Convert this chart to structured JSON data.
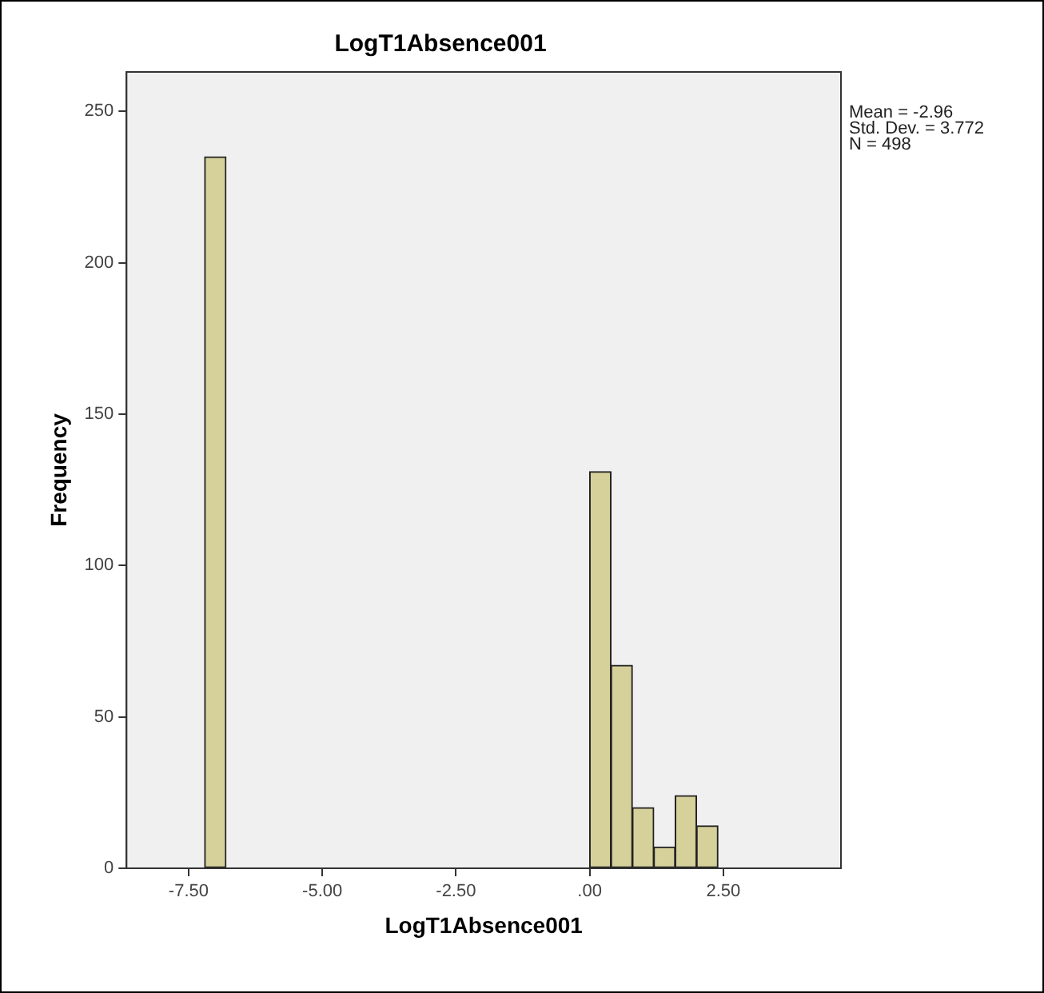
{
  "chart_data": {
    "type": "histogram",
    "title": "LogT1Absence001",
    "xlabel": "LogT1Absence001",
    "ylabel": "Frequency",
    "annotations": [
      "Mean = -2.96",
      "Std. Dev. = 3.772",
      "N = 498"
    ],
    "bins": [
      -7.2,
      -6.8,
      -6.4,
      -6.0,
      -5.6,
      -5.2,
      -4.8,
      -4.4,
      -4.0,
      -3.6,
      -3.2,
      -2.8,
      -2.4,
      -2.0,
      -1.6,
      -1.2,
      -0.8,
      -0.4,
      0,
      0.4,
      0.8,
      1.2,
      1.6,
      2.0,
      2.4
    ],
    "values": [
      235,
      0,
      0,
      0,
      0,
      0,
      0,
      0,
      0,
      0,
      0,
      0,
      0,
      0,
      0,
      0,
      0,
      0,
      131,
      67,
      20,
      7,
      24,
      14
    ],
    "color": "#d6d09a",
    "xlim": [
      -8.66,
      4.7
    ],
    "xticks": [
      {
        "value": -7.5,
        "label": "-7.50"
      },
      {
        "value": -5,
        "label": "-5.00"
      },
      {
        "value": -2.5,
        "label": "-2.50"
      },
      {
        "value": 0,
        "label": ".00"
      },
      {
        "value": 2.5,
        "label": "2.50"
      }
    ],
    "ylim": [
      0,
      263
    ],
    "yticks": [
      0,
      50,
      100,
      150,
      200,
      250
    ],
    "grid": false,
    "legend": false
  }
}
